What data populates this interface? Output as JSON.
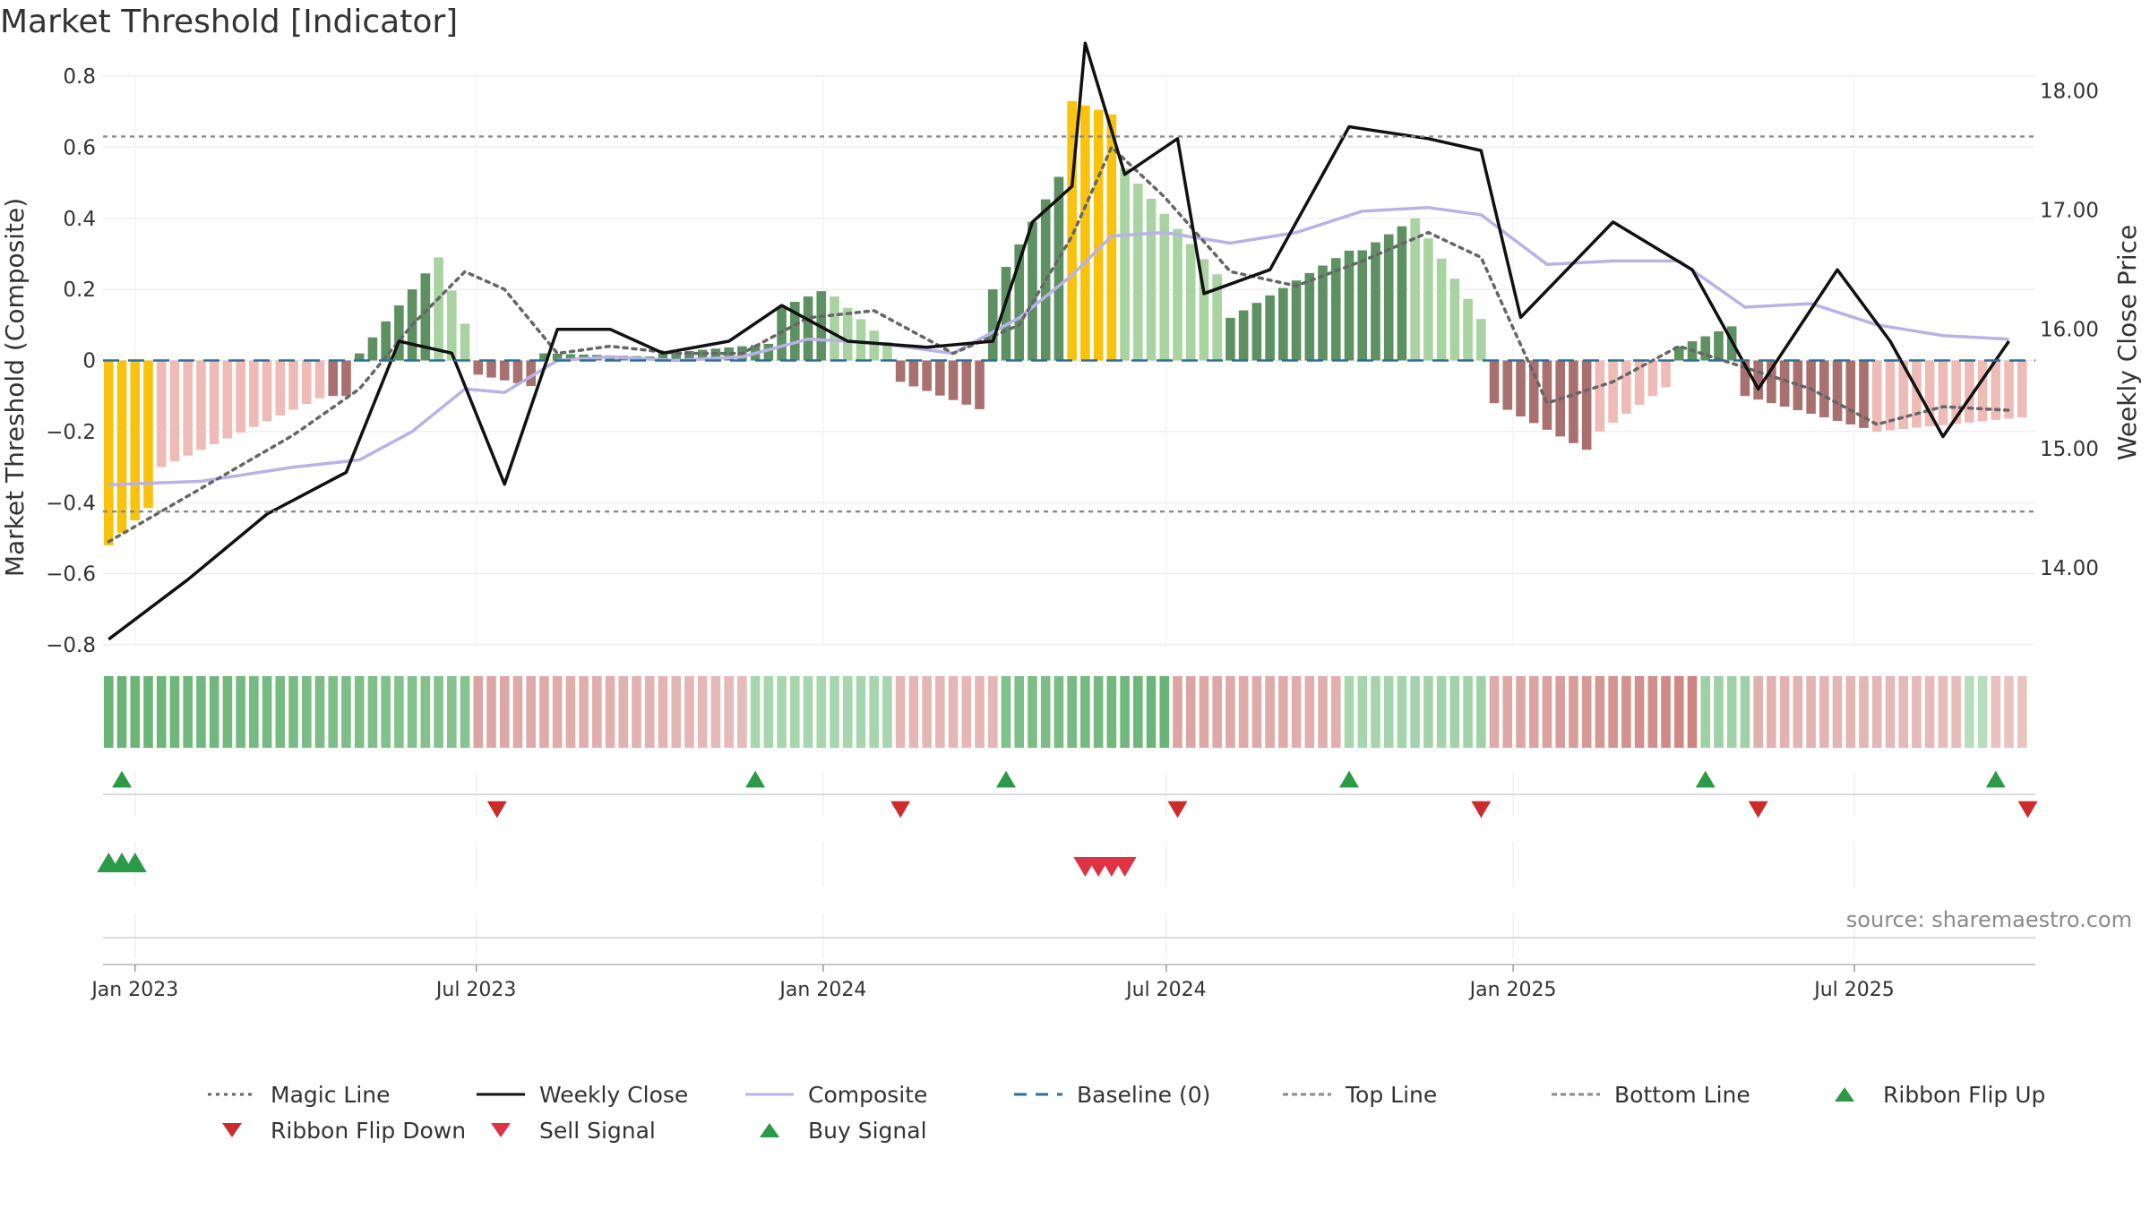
{
  "title": "Market Threshold [Indicator]",
  "source": "source: sharemaestro.com",
  "colors": {
    "magic": "#666666",
    "close": "#111111",
    "composite": "#b9b2e6",
    "baseline": "#2a6f9b",
    "threshold": "#8a8a8a",
    "yellow": "#f9c20d",
    "green_dark": "#5d9161",
    "green_light": "#a9d3a1",
    "red_light": "#eebbb6",
    "red_dark": "#a8716f",
    "flip_up": "#2b9a46",
    "flip_down": "#cc2b2b",
    "buy": "#2b9a46",
    "sell": "#dd3344"
  },
  "legend": [
    {
      "label": "Magic Line",
      "type": "dotted",
      "color": "#666666"
    },
    {
      "label": "Weekly Close",
      "type": "solid",
      "color": "#111111"
    },
    {
      "label": "Composite",
      "type": "solid",
      "color": "#b9b2e6"
    },
    {
      "label": "Baseline (0)",
      "type": "dashed",
      "color": "#2a6f9b"
    },
    {
      "label": "Top Line",
      "type": "dashed",
      "color": "#8a8a8a"
    },
    {
      "label": "Bottom Line",
      "type": "dashed",
      "color": "#8a8a8a"
    },
    {
      "label": "Ribbon Flip Up",
      "type": "tri-up",
      "color": "#2b9a46"
    },
    {
      "label": "Ribbon Flip Down",
      "type": "tri-down",
      "color": "#cc2b2b"
    },
    {
      "label": "Sell Signal",
      "type": "tri-down",
      "color": "#dd3344"
    },
    {
      "label": "Buy Signal",
      "type": "tri-up",
      "color": "#2b9a46"
    }
  ],
  "chart_data": {
    "type": "bar",
    "title": "Market Threshold [Indicator]",
    "ylabel": "Market Threshold (Composite)",
    "y2label": "Weekly Close Price",
    "ylim": [
      -0.8,
      0.8
    ],
    "y2lim": [
      13.0,
      18.5
    ],
    "yticks": [
      "0.8",
      "0.6",
      "0.4",
      "0.2",
      "0",
      "−0.2",
      "−0.4",
      "−0.6",
      "−0.8"
    ],
    "y2ticks": [
      "18.00",
      "17.00",
      "16.00",
      "15.00",
      "14.00"
    ],
    "xticks": [
      "Jan 2023",
      "Jul 2023",
      "Jan 2024",
      "Jul 2024",
      "Jan 2025",
      "Jul 2025"
    ],
    "xtick_dates": [
      "2023-01-01",
      "2023-07-01",
      "2024-01-01",
      "2024-07-01",
      "2025-01-01",
      "2025-07-01"
    ],
    "x_range": [
      "2022-12-15",
      "2025-10-05"
    ],
    "start_date": "2022-12-18",
    "weeks": 146,
    "top_line": 0.63,
    "bottom_line": -0.425,
    "baseline": 0,
    "grid": true,
    "legend_placement": "bottom",
    "composite": [
      {
        "date": "2022-12-18",
        "value": -0.35
      },
      {
        "date": "2023-02-05",
        "value": -0.34
      },
      {
        "date": "2023-03-26",
        "value": -0.3
      },
      {
        "date": "2023-04-30",
        "value": -0.28
      },
      {
        "date": "2023-05-28",
        "value": -0.2
      },
      {
        "date": "2023-06-25",
        "value": -0.08
      },
      {
        "date": "2023-07-16",
        "value": -0.09
      },
      {
        "date": "2023-08-13",
        "value": 0.0
      },
      {
        "date": "2023-09-10",
        "value": 0.01
      },
      {
        "date": "2023-10-15",
        "value": 0.0
      },
      {
        "date": "2023-11-19",
        "value": 0.01
      },
      {
        "date": "2023-12-24",
        "value": 0.06
      },
      {
        "date": "2024-01-28",
        "value": 0.05
      },
      {
        "date": "2024-03-10",
        "value": 0.02
      },
      {
        "date": "2024-04-14",
        "value": 0.12
      },
      {
        "date": "2024-05-12",
        "value": 0.24
      },
      {
        "date": "2024-06-02",
        "value": 0.35
      },
      {
        "date": "2024-06-30",
        "value": 0.36
      },
      {
        "date": "2024-08-04",
        "value": 0.33
      },
      {
        "date": "2024-09-08",
        "value": 0.36
      },
      {
        "date": "2024-10-13",
        "value": 0.42
      },
      {
        "date": "2024-11-17",
        "value": 0.43
      },
      {
        "date": "2024-12-15",
        "value": 0.41
      },
      {
        "date": "2025-01-19",
        "value": 0.27
      },
      {
        "date": "2025-02-23",
        "value": 0.28
      },
      {
        "date": "2025-03-30",
        "value": 0.28
      },
      {
        "date": "2025-05-04",
        "value": 0.15
      },
      {
        "date": "2025-06-08",
        "value": 0.16
      },
      {
        "date": "2025-07-13",
        "value": 0.1
      },
      {
        "date": "2025-08-17",
        "value": 0.07
      },
      {
        "date": "2025-09-21",
        "value": 0.06
      }
    ],
    "magic_line": [
      {
        "date": "2022-12-18",
        "value": -0.51
      },
      {
        "date": "2023-02-05",
        "value": -0.36
      },
      {
        "date": "2023-03-26",
        "value": -0.21
      },
      {
        "date": "2023-04-30",
        "value": -0.08
      },
      {
        "date": "2023-05-28",
        "value": 0.1
      },
      {
        "date": "2023-06-25",
        "value": 0.25
      },
      {
        "date": "2023-07-16",
        "value": 0.2
      },
      {
        "date": "2023-08-13",
        "value": 0.02
      },
      {
        "date": "2023-09-10",
        "value": 0.04
      },
      {
        "date": "2023-10-15",
        "value": 0.02
      },
      {
        "date": "2023-11-19",
        "value": 0.02
      },
      {
        "date": "2023-12-24",
        "value": 0.12
      },
      {
        "date": "2024-01-28",
        "value": 0.14
      },
      {
        "date": "2024-03-10",
        "value": 0.02
      },
      {
        "date": "2024-04-14",
        "value": 0.1
      },
      {
        "date": "2024-05-12",
        "value": 0.35
      },
      {
        "date": "2024-06-02",
        "value": 0.6
      },
      {
        "date": "2024-06-30",
        "value": 0.46
      },
      {
        "date": "2024-08-04",
        "value": 0.25
      },
      {
        "date": "2024-09-08",
        "value": 0.21
      },
      {
        "date": "2024-10-13",
        "value": 0.28
      },
      {
        "date": "2024-11-17",
        "value": 0.36
      },
      {
        "date": "2024-12-15",
        "value": 0.29
      },
      {
        "date": "2025-01-19",
        "value": -0.12
      },
      {
        "date": "2025-02-23",
        "value": -0.06
      },
      {
        "date": "2025-03-30",
        "value": 0.04
      },
      {
        "date": "2025-05-04",
        "value": -0.02
      },
      {
        "date": "2025-06-08",
        "value": -0.08
      },
      {
        "date": "2025-07-13",
        "value": -0.18
      },
      {
        "date": "2025-08-17",
        "value": -0.13
      },
      {
        "date": "2025-09-21",
        "value": -0.14
      }
    ],
    "weekly_close": [
      {
        "date": "2022-12-18",
        "value": 13.4
      },
      {
        "date": "2023-01-29",
        "value": 13.9
      },
      {
        "date": "2023-03-12",
        "value": 14.45
      },
      {
        "date": "2023-04-23",
        "value": 14.8
      },
      {
        "date": "2023-05-21",
        "value": 15.9
      },
      {
        "date": "2023-06-18",
        "value": 15.8
      },
      {
        "date": "2023-07-16",
        "value": 14.7
      },
      {
        "date": "2023-08-13",
        "value": 16.0
      },
      {
        "date": "2023-09-10",
        "value": 16.0
      },
      {
        "date": "2023-10-08",
        "value": 15.8
      },
      {
        "date": "2023-11-12",
        "value": 15.9
      },
      {
        "date": "2023-12-10",
        "value": 16.2
      },
      {
        "date": "2024-01-14",
        "value": 15.9
      },
      {
        "date": "2024-02-25",
        "value": 15.85
      },
      {
        "date": "2024-03-31",
        "value": 15.9
      },
      {
        "date": "2024-04-21",
        "value": 16.9
      },
      {
        "date": "2024-05-12",
        "value": 17.2
      },
      {
        "date": "2024-05-19",
        "value": 18.4
      },
      {
        "date": "2024-06-09",
        "value": 17.3
      },
      {
        "date": "2024-07-07",
        "value": 17.6
      },
      {
        "date": "2024-07-21",
        "value": 16.3
      },
      {
        "date": "2024-08-25",
        "value": 16.5
      },
      {
        "date": "2024-10-06",
        "value": 17.7
      },
      {
        "date": "2024-11-17",
        "value": 17.6
      },
      {
        "date": "2024-12-15",
        "value": 17.5
      },
      {
        "date": "2025-01-05",
        "value": 16.1
      },
      {
        "date": "2025-02-23",
        "value": 16.9
      },
      {
        "date": "2025-04-06",
        "value": 16.5
      },
      {
        "date": "2025-05-11",
        "value": 15.5
      },
      {
        "date": "2025-06-22",
        "value": 16.5
      },
      {
        "date": "2025-07-20",
        "value": 15.9
      },
      {
        "date": "2025-08-17",
        "value": 15.1
      },
      {
        "date": "2025-09-21",
        "value": 15.9
      }
    ],
    "composite_bar_segments": [
      {
        "start": "2022-12-18",
        "end": "2023-01-15",
        "from": -0.52,
        "to": -0.38,
        "tone": "yellow"
      },
      {
        "start": "2023-01-15",
        "end": "2023-04-16",
        "from": -0.3,
        "to": -0.09,
        "tone": "red_light"
      },
      {
        "start": "2023-04-16",
        "end": "2023-04-30",
        "from": -0.1,
        "to": -0.1,
        "tone": "red_dark"
      },
      {
        "start": "2023-04-30",
        "end": "2023-06-11",
        "from": 0.02,
        "to": 0.29,
        "tone": "green_dark"
      },
      {
        "start": "2023-06-11",
        "end": "2023-07-02",
        "from": 0.29,
        "to": 0.01,
        "tone": "green_light"
      },
      {
        "start": "2023-07-02",
        "end": "2023-08-06",
        "from": -0.04,
        "to": -0.08,
        "tone": "red_dark"
      },
      {
        "start": "2023-08-06",
        "end": "2023-10-08",
        "from": 0.02,
        "to": 0.01,
        "tone": "green_dark"
      },
      {
        "start": "2023-10-08",
        "end": "2023-12-10",
        "from": 0.02,
        "to": 0.05,
        "tone": "green_dark"
      },
      {
        "start": "2023-12-10",
        "end": "2024-01-07",
        "from": 0.15,
        "to": 0.21,
        "tone": "green_dark"
      },
      {
        "start": "2024-01-07",
        "end": "2024-02-11",
        "from": 0.18,
        "to": 0.02,
        "tone": "green_light"
      },
      {
        "start": "2024-02-11",
        "end": "2024-03-31",
        "from": -0.06,
        "to": -0.15,
        "tone": "red_dark"
      },
      {
        "start": "2024-03-31",
        "end": "2024-05-12",
        "from": 0.2,
        "to": 0.58,
        "tone": "green_dark"
      },
      {
        "start": "2024-05-12",
        "end": "2024-06-09",
        "from": 0.73,
        "to": 0.68,
        "tone": "yellow"
      },
      {
        "start": "2024-06-09",
        "end": "2024-08-04",
        "from": 0.54,
        "to": 0.2,
        "tone": "green_light"
      },
      {
        "start": "2024-08-04",
        "end": "2024-10-13",
        "from": 0.12,
        "to": 0.33,
        "tone": "green_dark"
      },
      {
        "start": "2024-10-13",
        "end": "2024-11-10",
        "from": 0.31,
        "to": 0.4,
        "tone": "green_dark"
      },
      {
        "start": "2024-11-10",
        "end": "2024-12-22",
        "from": 0.4,
        "to": 0.06,
        "tone": "green_light"
      },
      {
        "start": "2024-12-22",
        "end": "2025-02-16",
        "from": -0.12,
        "to": -0.27,
        "tone": "red_dark"
      },
      {
        "start": "2025-02-16",
        "end": "2025-03-30",
        "from": -0.2,
        "to": -0.05,
        "tone": "red_light"
      },
      {
        "start": "2025-03-30",
        "end": "2025-05-04",
        "from": 0.04,
        "to": 0.11,
        "tone": "green_dark"
      },
      {
        "start": "2025-05-04",
        "end": "2025-07-13",
        "from": -0.1,
        "to": -0.2,
        "tone": "red_dark"
      },
      {
        "start": "2025-07-13",
        "end": "2025-09-28",
        "from": -0.2,
        "to": -0.16,
        "tone": "red_light"
      }
    ],
    "ribbon": [
      {
        "start": "2022-12-18",
        "end": "2023-07-02",
        "tone": "green",
        "from": 0.7,
        "to": 0.5
      },
      {
        "start": "2023-07-02",
        "end": "2023-11-26",
        "tone": "red",
        "from": 0.45,
        "to": 0.25
      },
      {
        "start": "2023-11-26",
        "end": "2024-02-11",
        "tone": "green",
        "from": 0.3,
        "to": 0.3
      },
      {
        "start": "2024-02-11",
        "end": "2024-04-07",
        "tone": "red",
        "from": 0.3,
        "to": 0.3
      },
      {
        "start": "2024-04-07",
        "end": "2024-07-07",
        "tone": "green",
        "from": 0.55,
        "to": 0.7
      },
      {
        "start": "2024-07-07",
        "end": "2024-10-06",
        "tone": "red",
        "from": 0.45,
        "to": 0.35
      },
      {
        "start": "2024-10-06",
        "end": "2024-12-22",
        "tone": "green",
        "from": 0.3,
        "to": 0.35
      },
      {
        "start": "2024-12-22",
        "end": "2025-04-13",
        "tone": "red",
        "from": 0.4,
        "to": 0.75
      },
      {
        "start": "2025-04-13",
        "end": "2025-05-11",
        "tone": "green",
        "from": 0.35,
        "to": 0.35
      },
      {
        "start": "2025-05-11",
        "end": "2025-08-31",
        "tone": "red",
        "from": 0.35,
        "to": 0.25
      },
      {
        "start": "2025-08-31",
        "end": "2025-09-14",
        "tone": "green",
        "from": 0.2,
        "to": 0.2
      },
      {
        "start": "2025-09-14",
        "end": "2025-10-05",
        "tone": "red",
        "from": 0.2,
        "to": 0.2
      }
    ],
    "ribbon_flip_up": [
      "2022-12-25",
      "2023-11-26",
      "2024-04-07",
      "2024-10-06",
      "2025-04-13",
      "2025-09-14"
    ],
    "ribbon_flip_down": [
      "2023-07-12",
      "2024-02-11",
      "2024-07-07",
      "2024-12-15",
      "2025-05-11",
      "2025-10-01"
    ],
    "buy_signals": [
      "2022-12-18",
      "2022-12-25",
      "2023-01-01"
    ],
    "sell_signals": [
      "2024-05-19",
      "2024-05-26",
      "2024-06-02",
      "2024-06-09"
    ]
  }
}
